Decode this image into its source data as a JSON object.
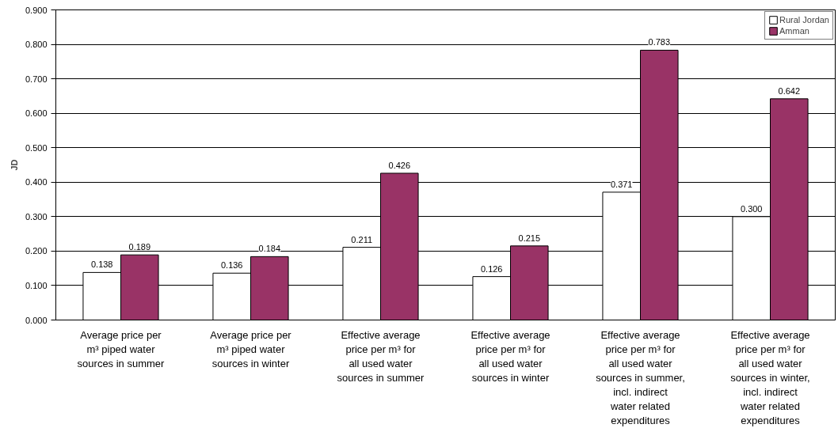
{
  "chart_data": {
    "type": "bar",
    "ylabel": "JD",
    "categories": [
      "Average price per m³ piped water sources in summer",
      "Average price per m³ piped water sources in winter",
      "Effective average price per m³ for all used water sources in summer",
      "Effective average price per m³ for all used water sources in winter",
      "Effective average price per m³ for all used water sources in summer, incl. indirect water related expenditures",
      "Effective average price per m³ for all used water sources in winter, incl. indirect water related expenditures"
    ],
    "series": [
      {
        "name": "Rural Jordan",
        "color": "#ffffff",
        "values": [
          0.138,
          0.136,
          0.211,
          0.126,
          0.371,
          0.3
        ],
        "value_labels": [
          "0.138",
          "0.136",
          "0.211",
          "0.126",
          "0.371",
          "0.300"
        ]
      },
      {
        "name": "Amman",
        "color": "#993366",
        "values": [
          0.189,
          0.184,
          0.426,
          0.215,
          0.783,
          0.642
        ],
        "value_labels": [
          "0.189",
          "0.184",
          "0.426",
          "0.215",
          "0.783",
          "0.642"
        ]
      }
    ],
    "ylim": [
      0,
      0.9
    ],
    "yticks": [
      {
        "value": 0,
        "label": "0.000"
      },
      {
        "value": 0.1,
        "label": "0.100"
      },
      {
        "value": 0.2,
        "label": "0.200"
      },
      {
        "value": 0.3,
        "label": "0.300"
      },
      {
        "value": 0.4,
        "label": "0.400"
      },
      {
        "value": 0.5,
        "label": "0.500"
      },
      {
        "value": 0.6,
        "label": "0.600"
      },
      {
        "value": 0.7,
        "label": "0.700"
      },
      {
        "value": 0.8,
        "label": "0.800"
      },
      {
        "value": 0.9,
        "label": "0.900"
      }
    ],
    "grid": "y",
    "legend": "top right"
  }
}
